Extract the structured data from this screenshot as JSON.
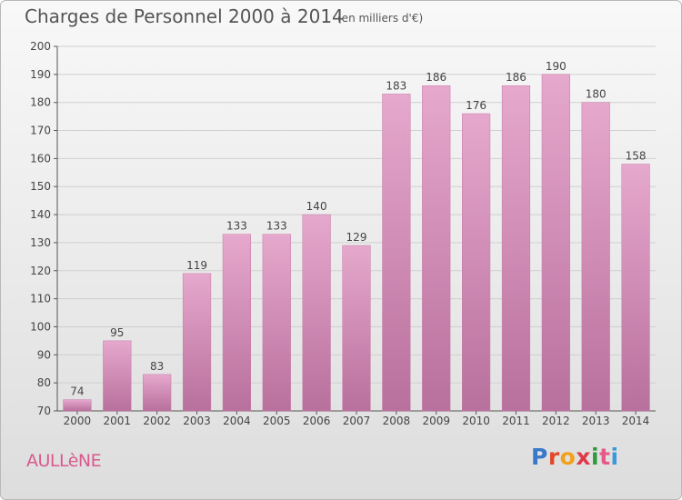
{
  "page": {
    "title": "Charges de Personnel 2000 à 2014",
    "subtitle": "(en milliers d'€)",
    "place": "AULLèNE",
    "logo": {
      "text": "Proxiti",
      "letter_colors": [
        "#3a78c9",
        "#e04a2a",
        "#f2a21a",
        "#e03a4a",
        "#2f9a3a",
        "#e65a8a",
        "#3a9ad9"
      ]
    }
  },
  "chart_data": {
    "type": "bar",
    "title": "Charges de Personnel 2000 à 2014",
    "subtitle": "(en milliers d'€)",
    "categories": [
      "2000",
      "2001",
      "2002",
      "2003",
      "2004",
      "2005",
      "2006",
      "2007",
      "2008",
      "2009",
      "2010",
      "2011",
      "2012",
      "2013",
      "2014"
    ],
    "values": [
      74,
      95,
      83,
      119,
      133,
      133,
      140,
      129,
      183,
      186,
      176,
      186,
      190,
      180,
      158
    ],
    "ylim": [
      70,
      200
    ],
    "yticks": [
      70,
      80,
      90,
      100,
      110,
      120,
      130,
      140,
      150,
      160,
      170,
      180,
      190,
      200
    ],
    "grid": true,
    "bar_color": "#d98ab8",
    "xlabel": "",
    "ylabel": ""
  }
}
